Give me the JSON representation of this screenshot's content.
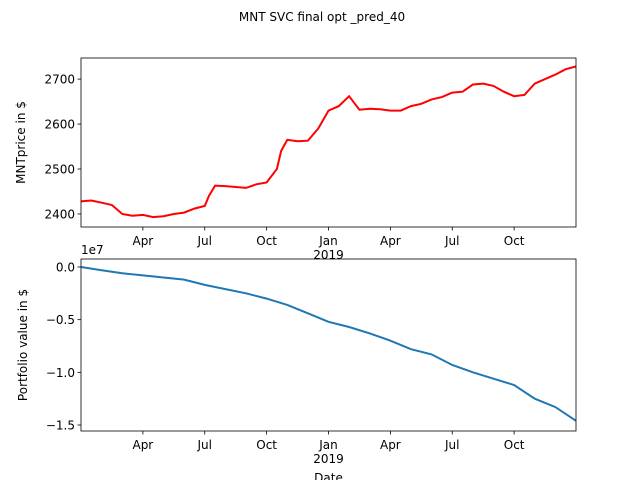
{
  "title": "MNT SVC final opt _pred_40",
  "chart_data": [
    {
      "type": "line",
      "ylabel": "MNTprice in $",
      "x": [
        0,
        0.5,
        1,
        1.5,
        2,
        2.5,
        3,
        3.5,
        4,
        4.5,
        5,
        5.5,
        6,
        6.2,
        6.5,
        7,
        7.5,
        8,
        8.5,
        9,
        9.5,
        9.7,
        10,
        10.5,
        11,
        11.5,
        12,
        12.5,
        13,
        13.5,
        14,
        14.5,
        15,
        15.5,
        16,
        16.5,
        17,
        17.5,
        18,
        18.5,
        19,
        19.5,
        20,
        20.5,
        21,
        21.5,
        22,
        22.5,
        23,
        23.5,
        24
      ],
      "series": [
        {
          "color": "#ff0000",
          "values": [
            2428,
            2430,
            2425,
            2420,
            2400,
            2396,
            2398,
            2393,
            2395,
            2400,
            2403,
            2412,
            2418,
            2440,
            2463,
            2462,
            2460,
            2458,
            2466,
            2470,
            2500,
            2540,
            2565,
            2562,
            2563,
            2590,
            2630,
            2640,
            2662,
            2632,
            2634,
            2633,
            2630,
            2630,
            2640,
            2645,
            2655,
            2660,
            2670,
            2672,
            2688,
            2690,
            2685,
            2672,
            2662,
            2665,
            2690,
            2700,
            2710,
            2722,
            2728
          ]
        }
      ],
      "xlim": [
        0,
        24
      ],
      "xticks": [
        {
          "value": 3,
          "label": "Apr"
        },
        {
          "value": 6,
          "label": "Jul"
        },
        {
          "value": 9,
          "label": "Oct"
        },
        {
          "value": 12,
          "label": "Jan"
        },
        {
          "value": 15,
          "label": "Apr"
        },
        {
          "value": 18,
          "label": "Jul"
        },
        {
          "value": 21,
          "label": "Oct"
        }
      ],
      "xsublabels": [
        {
          "value": 12,
          "label": "2019"
        }
      ],
      "ylim": [
        2371,
        2747
      ],
      "yticks": [
        2400,
        2500,
        2600,
        2700
      ]
    },
    {
      "type": "line",
      "ylabel": "Portfolio value in $",
      "xlabel": "Date",
      "offset_label": "1e7",
      "x": [
        0,
        1,
        2,
        3,
        4,
        5,
        6,
        7,
        8,
        9,
        10,
        11,
        12,
        13,
        14,
        15,
        16,
        17,
        18,
        19,
        20,
        21,
        22,
        23,
        24
      ],
      "series": [
        {
          "color": "#1f77b4",
          "values": [
            0.0,
            -0.03,
            -0.06,
            -0.08,
            -0.1,
            -0.12,
            -0.17,
            -0.21,
            -0.25,
            -0.3,
            -0.36,
            -0.44,
            -0.52,
            -0.57,
            -0.63,
            -0.7,
            -0.78,
            -0.83,
            -0.93,
            -1.0,
            -1.06,
            -1.12,
            -1.25,
            -1.33,
            -1.46
          ]
        }
      ],
      "xlim": [
        0,
        24
      ],
      "xticks": [
        {
          "value": 3,
          "label": "Apr"
        },
        {
          "value": 6,
          "label": "Jul"
        },
        {
          "value": 9,
          "label": "Oct"
        },
        {
          "value": 12,
          "label": "Jan"
        },
        {
          "value": 15,
          "label": "Apr"
        },
        {
          "value": 18,
          "label": "Jul"
        },
        {
          "value": 21,
          "label": "Oct"
        }
      ],
      "xsublabels": [
        {
          "value": 12,
          "label": "2019"
        }
      ],
      "ylim": [
        -1.557,
        0.076
      ],
      "yticks": [
        {
          "value": 0,
          "label": "0.0"
        },
        {
          "value": -0.5,
          "label": "−0.5"
        },
        {
          "value": -1.0,
          "label": "−1.0"
        },
        {
          "value": -1.5,
          "label": "−1.5"
        }
      ]
    }
  ]
}
